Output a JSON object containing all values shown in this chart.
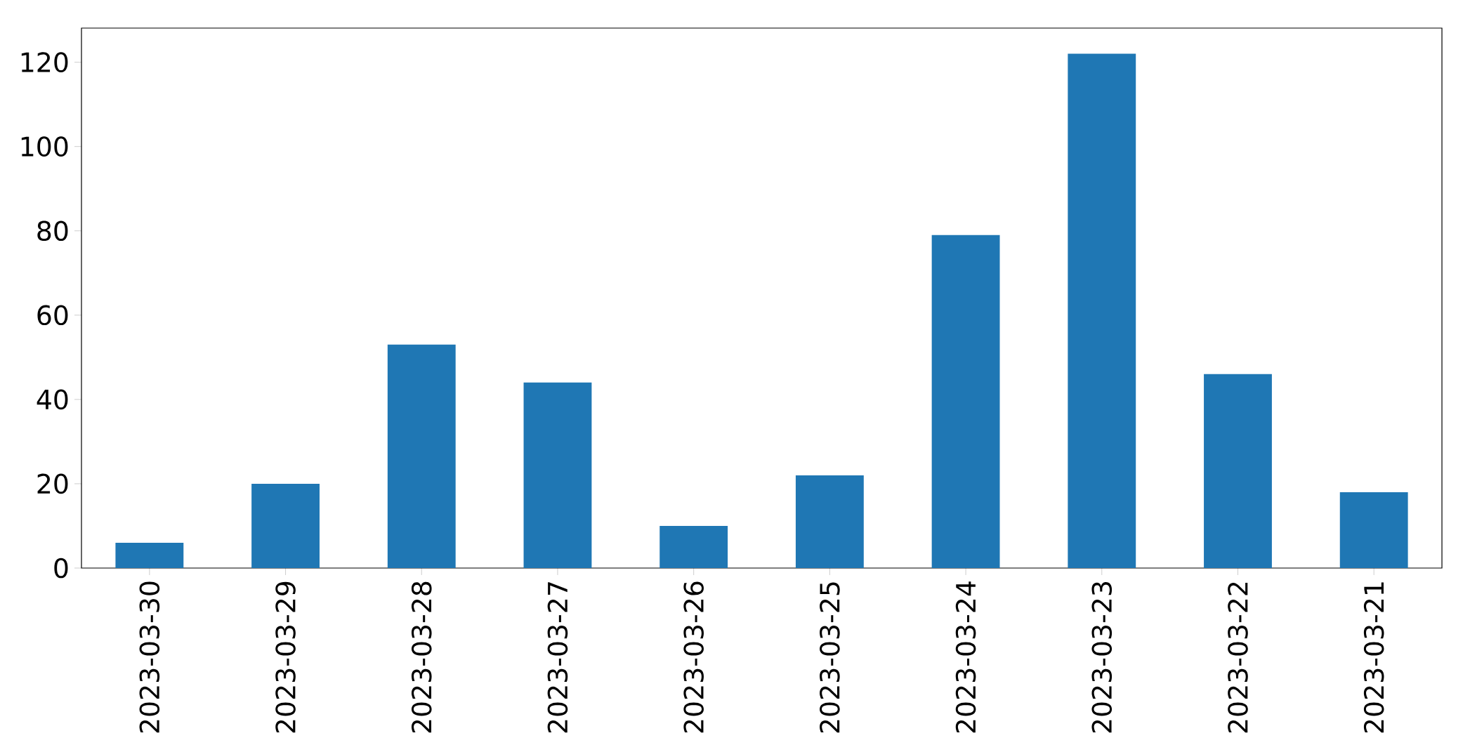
{
  "chart_data": {
    "type": "bar",
    "categories": [
      "2023-03-30",
      "2023-03-29",
      "2023-03-28",
      "2023-03-27",
      "2023-03-26",
      "2023-03-25",
      "2023-03-24",
      "2023-03-23",
      "2023-03-22",
      "2023-03-21"
    ],
    "values": [
      6,
      20,
      53,
      44,
      10,
      22,
      79,
      122,
      46,
      18
    ],
    "color": "#1f77b4",
    "ylim": [
      0,
      128.1
    ],
    "yticks": [
      0,
      20,
      40,
      60,
      80,
      100,
      120
    ],
    "grid": false
  }
}
